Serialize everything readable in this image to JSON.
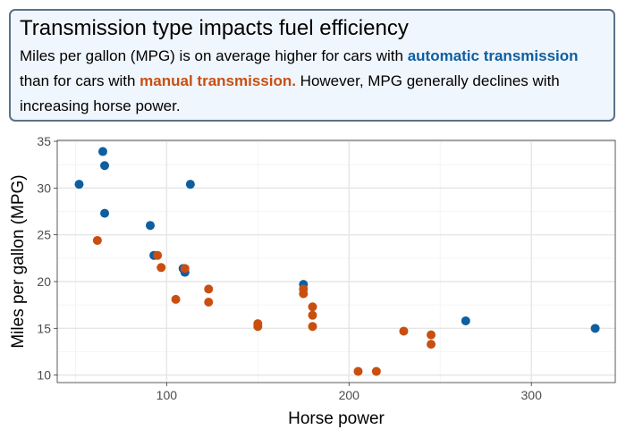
{
  "chart_data": {
    "type": "scatter",
    "title": "Transmission type impacts fuel efficiency",
    "subtitle": {
      "part1": "Miles per gallon (MPG) is on average higher for cars with ",
      "automatic": "automatic transmission",
      "part2": " than for cars with ",
      "manual": "manual transmission.",
      "part3": " However, MPG generally declines with increasing horse power."
    },
    "xlabel": "Horse power",
    "ylabel": "Miles per gallon (MPG)",
    "xlim": [
      40,
      346
    ],
    "ylim": [
      9.2,
      35.1
    ],
    "xticks": [
      100,
      200,
      300
    ],
    "yticks": [
      10,
      15,
      20,
      25,
      30,
      35
    ],
    "grid": true,
    "series": [
      {
        "color": "#0e5fa0",
        "points": [
          [
            52,
            30.4
          ],
          [
            65,
            33.9
          ],
          [
            66,
            32.4
          ],
          [
            66,
            27.3
          ],
          [
            91,
            26.0
          ],
          [
            113,
            30.4
          ],
          [
            93,
            22.8
          ],
          [
            109,
            21.4
          ],
          [
            110,
            21.0
          ],
          [
            110,
            21.0
          ],
          [
            175,
            19.7
          ],
          [
            264,
            15.8
          ],
          [
            335,
            15.0
          ]
        ]
      },
      {
        "color": "#c94f10",
        "points": [
          [
            62,
            24.4
          ],
          [
            95,
            22.8
          ],
          [
            97,
            21.5
          ],
          [
            105,
            18.1
          ],
          [
            110,
            21.4
          ],
          [
            123,
            19.2
          ],
          [
            123,
            17.8
          ],
          [
            150,
            15.5
          ],
          [
            150,
            15.2
          ],
          [
            175,
            18.7
          ],
          [
            175,
            19.2
          ],
          [
            180,
            17.3
          ],
          [
            180,
            16.4
          ],
          [
            180,
            15.2
          ],
          [
            205,
            10.4
          ],
          [
            215,
            10.4
          ],
          [
            230,
            14.7
          ],
          [
            245,
            14.3
          ],
          [
            245,
            13.3
          ]
        ]
      }
    ]
  },
  "colors": {
    "automatic": "#0e5fa0",
    "manual": "#c94f10",
    "box_fill": "#f0f6fd",
    "box_border": "#5b7088"
  }
}
